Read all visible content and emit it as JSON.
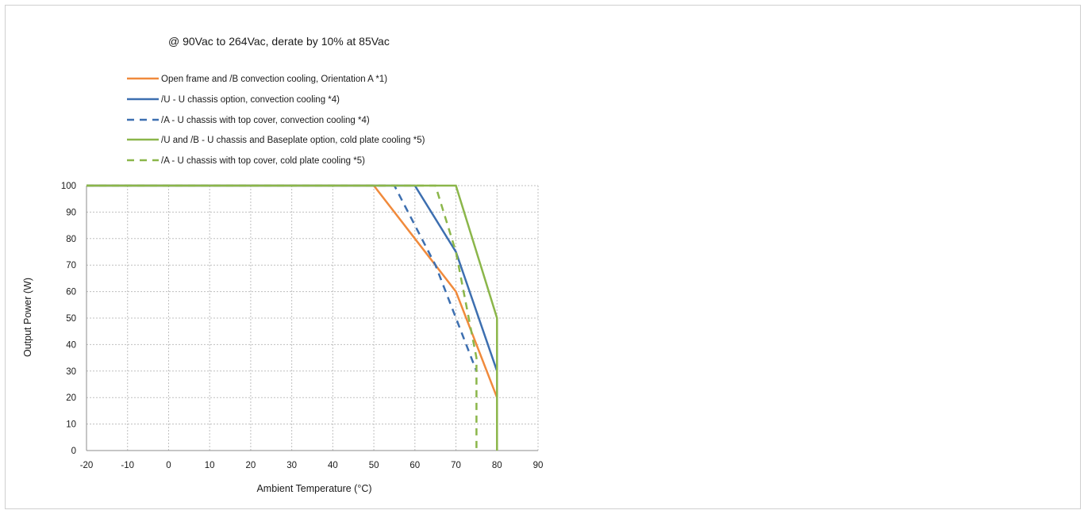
{
  "chart_data": {
    "type": "line",
    "title": "@ 90Vac to 264Vac, derate by 10% at 85Vac",
    "xlabel": "Ambient Temperature  (°C)",
    "ylabel": "Output Power  (W)",
    "xlim": [
      -20,
      90
    ],
    "ylim": [
      0,
      100
    ],
    "xticks": [
      -20,
      -10,
      0,
      10,
      20,
      30,
      40,
      50,
      60,
      70,
      80,
      90
    ],
    "yticks": [
      0,
      10,
      20,
      30,
      40,
      50,
      60,
      70,
      80,
      90,
      100
    ],
    "grid": true,
    "legend": "top",
    "series": [
      {
        "name": "Open frame and /B convection cooling, Orientation A *1)",
        "color": "#f08a3c",
        "dash": "solid",
        "points": [
          [
            -20,
            100
          ],
          [
            50,
            100
          ],
          [
            60,
            80
          ],
          [
            70,
            60
          ],
          [
            80,
            20
          ]
        ]
      },
      {
        "name": "/U - U chassis option, convection cooling *4)",
        "color": "#3d6fb0",
        "dash": "solid",
        "points": [
          [
            -20,
            100
          ],
          [
            60,
            100
          ],
          [
            70,
            75
          ],
          [
            80,
            30
          ]
        ]
      },
      {
        "name": "/A - U chassis with top cover, convection cooling *4)",
        "color": "#3d6fb0",
        "dash": "dashed",
        "points": [
          [
            -20,
            100
          ],
          [
            55,
            100
          ],
          [
            65,
            70
          ],
          [
            75,
            30
          ]
        ]
      },
      {
        "name": "/U and /B - U chassis  and Baseplate option, cold plate cooling *5)",
        "color": "#8bb64a",
        "dash": "solid",
        "points": [
          [
            -20,
            100
          ],
          [
            70,
            100
          ],
          [
            80,
            50
          ],
          [
            80,
            0
          ]
        ]
      },
      {
        "name": "/A -  U chassis with top cover, cold plate cooling *5)",
        "color": "#8bb64a",
        "dash": "dashed",
        "points": [
          [
            -20,
            100
          ],
          [
            65,
            100
          ],
          [
            70,
            75
          ],
          [
            75,
            35
          ],
          [
            75,
            0
          ]
        ]
      }
    ]
  }
}
